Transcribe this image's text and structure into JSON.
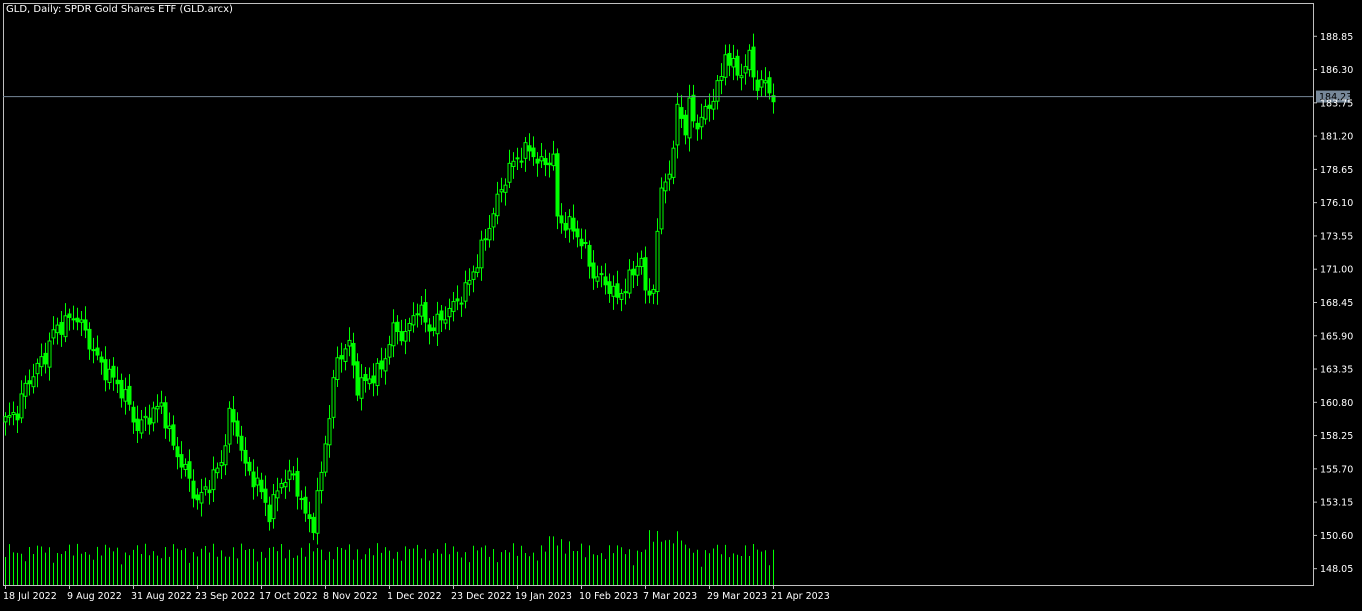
{
  "title": "GLD, Daily:  SPDR Gold Shares ETF (GLD.arcx)",
  "colors": {
    "background": "#000000",
    "frame": "#c0c0c0",
    "axis_text": "#ffffff",
    "candle_up": "#00ff00",
    "candle_down": "#00ff00",
    "volume": "#00ff00",
    "bid_line": "#778899",
    "bid_label_bg": "#778899",
    "bid_label_text": "#000000"
  },
  "chart_data": {
    "type": "candlestick",
    "symbol": "GLD",
    "timeframe": "Daily",
    "ylim": [
      146.8,
      191.4
    ],
    "y_ticks": [
      "188.85",
      "186.30",
      "183.75",
      "181.20",
      "178.65",
      "176.10",
      "173.55",
      "171.00",
      "168.45",
      "165.90",
      "163.35",
      "160.80",
      "158.25",
      "155.70",
      "153.15",
      "150.60",
      "148.05"
    ],
    "x_tick_labels": [
      "18 Jul 2022",
      "9 Aug 2022",
      "31 Aug 2022",
      "23 Sep 2022",
      "17 Oct 2022",
      "8 Nov 2022",
      "1 Dec 2022",
      "23 Dec 2022",
      "19 Jan 2023",
      "10 Feb 2023",
      "7 Mar 2023",
      "29 Mar 2023",
      "21 Apr 2023"
    ],
    "x_tick_bar_index": [
      0,
      16,
      32,
      48,
      64,
      80,
      96,
      112,
      128,
      144,
      160,
      176,
      192
    ],
    "current_price": "184.23",
    "close_path": [
      {
        "i": 0,
        "c": 159.4
      },
      {
        "i": 3,
        "c": 160.1
      },
      {
        "i": 5,
        "c": 162.0
      },
      {
        "i": 8,
        "c": 163.5
      },
      {
        "i": 10,
        "c": 164.4
      },
      {
        "i": 12,
        "c": 166.2
      },
      {
        "i": 15,
        "c": 167.0
      },
      {
        "i": 18,
        "c": 167.4
      },
      {
        "i": 21,
        "c": 165.4
      },
      {
        "i": 24,
        "c": 163.6
      },
      {
        "i": 27,
        "c": 162.6
      },
      {
        "i": 30,
        "c": 161.3
      },
      {
        "i": 33,
        "c": 158.8
      },
      {
        "i": 36,
        "c": 159.8
      },
      {
        "i": 39,
        "c": 160.6
      },
      {
        "i": 42,
        "c": 157.4
      },
      {
        "i": 45,
        "c": 155.6
      },
      {
        "i": 48,
        "c": 153.2
      },
      {
        "i": 51,
        "c": 154.6
      },
      {
        "i": 54,
        "c": 156.2
      },
      {
        "i": 56,
        "c": 159.8
      },
      {
        "i": 58,
        "c": 158.6
      },
      {
        "i": 60,
        "c": 155.8
      },
      {
        "i": 63,
        "c": 154.6
      },
      {
        "i": 66,
        "c": 152.3
      },
      {
        "i": 69,
        "c": 154.8
      },
      {
        "i": 72,
        "c": 155.2
      },
      {
        "i": 75,
        "c": 152.1
      },
      {
        "i": 77,
        "c": 151.5
      },
      {
        "i": 79,
        "c": 155.4
      },
      {
        "i": 81,
        "c": 160.0
      },
      {
        "i": 83,
        "c": 164.2
      },
      {
        "i": 86,
        "c": 165.2
      },
      {
        "i": 88,
        "c": 162.0
      },
      {
        "i": 91,
        "c": 162.6
      },
      {
        "i": 94,
        "c": 163.4
      },
      {
        "i": 97,
        "c": 166.4
      },
      {
        "i": 100,
        "c": 165.9
      },
      {
        "i": 103,
        "c": 168.2
      },
      {
        "i": 106,
        "c": 166.4
      },
      {
        "i": 109,
        "c": 167.2
      },
      {
        "i": 112,
        "c": 168.2
      },
      {
        "i": 115,
        "c": 169.4
      },
      {
        "i": 118,
        "c": 171.6
      },
      {
        "i": 121,
        "c": 174.4
      },
      {
        "i": 124,
        "c": 177.2
      },
      {
        "i": 126,
        "c": 178.7
      },
      {
        "i": 128,
        "c": 179.6
      },
      {
        "i": 131,
        "c": 180.2
      },
      {
        "i": 134,
        "c": 179.0
      },
      {
        "i": 137,
        "c": 179.6
      },
      {
        "i": 138,
        "c": 174.8
      },
      {
        "i": 141,
        "c": 174.4
      },
      {
        "i": 144,
        "c": 173.2
      },
      {
        "i": 147,
        "c": 170.6
      },
      {
        "i": 150,
        "c": 170.0
      },
      {
        "i": 153,
        "c": 168.8
      },
      {
        "i": 156,
        "c": 170.2
      },
      {
        "i": 159,
        "c": 172.0
      },
      {
        "i": 160,
        "c": 168.8
      },
      {
        "i": 162,
        "c": 169.8
      },
      {
        "i": 163,
        "c": 173.6
      },
      {
        "i": 164,
        "c": 177.0
      },
      {
        "i": 167,
        "c": 179.6
      },
      {
        "i": 168,
        "c": 183.8
      },
      {
        "i": 170,
        "c": 181.6
      },
      {
        "i": 171,
        "c": 183.4
      },
      {
        "i": 173,
        "c": 182.0
      },
      {
        "i": 176,
        "c": 183.6
      },
      {
        "i": 178,
        "c": 184.9
      },
      {
        "i": 179,
        "c": 185.8
      },
      {
        "i": 180,
        "c": 187.6
      },
      {
        "i": 182,
        "c": 186.4
      },
      {
        "i": 184,
        "c": 186.0
      },
      {
        "i": 186,
        "c": 187.2
      },
      {
        "i": 188,
        "c": 185.0
      },
      {
        "i": 190,
        "c": 185.3
      },
      {
        "i": 192,
        "c": 184.2
      }
    ],
    "volume_profile": {
      "shown": true,
      "note": "tick volume bars along the bottom of the chart, no scale printed",
      "bar_count": 193
    }
  }
}
